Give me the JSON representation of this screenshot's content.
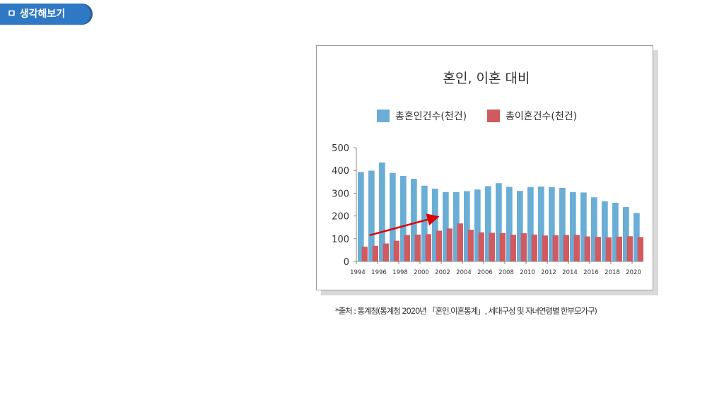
{
  "section_label": "ㅁ 생각해보기",
  "source_note": "*출처 : 통계청(통계청 2020년 「혼인.이혼통계」, 세대구성 및 자녀연령별 한부모가구)",
  "colors": {
    "tab_background": "#2f78c4",
    "marriage": "#6aaed6",
    "divorce": "#d05a5f",
    "arrow": "#e00000"
  },
  "chart_data": {
    "type": "bar",
    "title": "혼인, 이혼 대비",
    "legend_placement": "top",
    "ylim": [
      0,
      500
    ],
    "yticks": [
      "500",
      "400",
      "300",
      "200",
      "100",
      "0"
    ],
    "xtick_labels": [
      "1994",
      "1996",
      "1998",
      "2000",
      "2002",
      "2004",
      "2006",
      "2008",
      "2010",
      "2012",
      "2014",
      "2016",
      "2018",
      "2020"
    ],
    "categories": [
      "1994",
      "1995",
      "1996",
      "1997",
      "1998",
      "1999",
      "2000",
      "2001",
      "2002",
      "2003",
      "2004",
      "2005",
      "2006",
      "2007",
      "2008",
      "2009",
      "2010",
      "2011",
      "2012",
      "2013",
      "2014",
      "2015",
      "2016",
      "2017",
      "2018",
      "2019",
      "2020"
    ],
    "series": [
      {
        "name": "총혼인건수(천건)",
        "values": [
          393,
          399,
          435,
          389,
          376,
          363,
          333,
          320,
          305,
          305,
          309,
          316,
          331,
          344,
          328,
          310,
          327,
          329,
          327,
          323,
          305,
          303,
          282,
          264,
          258,
          239,
          213
        ]
      },
      {
        "name": "총이혼건수(천건)",
        "values": [
          65,
          69,
          79,
          91,
          116,
          118,
          120,
          135,
          145,
          167,
          139,
          128,
          126,
          125,
          117,
          124,
          118,
          114,
          115,
          116,
          116,
          110,
          108,
          106,
          109,
          111,
          107
        ]
      }
    ]
  }
}
